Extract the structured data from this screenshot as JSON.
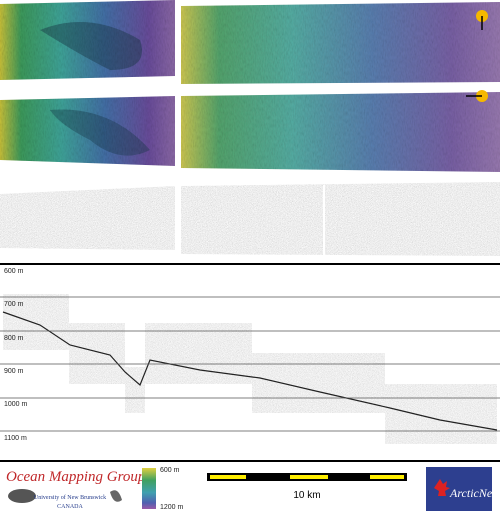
{
  "profile": {
    "depth_labels": [
      "600 m",
      "700 m",
      "800 m",
      "900 m",
      "1000 m",
      "1100 m"
    ]
  },
  "footer": {
    "logo": {
      "title": "Ocean Mapping Group",
      "line1": "University of New Brunswick",
      "line2": "CANADA"
    },
    "colorbar": {
      "top_label": "600 m",
      "bottom_label": "1200 m"
    },
    "scale_bar": {
      "label": "10 km"
    },
    "partner_logo": {
      "title": "ArcticNet"
    }
  }
}
